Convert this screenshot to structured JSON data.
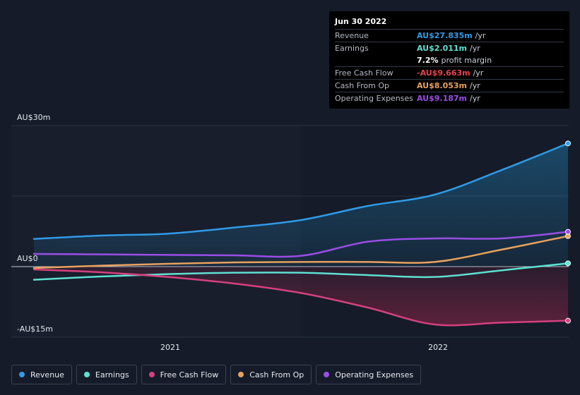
{
  "chart_data": {
    "type": "line",
    "title": "",
    "xlabel": "",
    "ylabel": "",
    "ylim": [
      -15,
      30
    ],
    "y_ticks": [
      {
        "value": 30,
        "label": "AU$30m"
      },
      {
        "value": 0,
        "label": "AU$0"
      },
      {
        "value": -15,
        "label": "-AU$15m"
      }
    ],
    "x_ticks": [
      {
        "value": 2021.0,
        "label": "2021"
      },
      {
        "value": 2022.0,
        "label": "2022"
      }
    ],
    "xlim": [
      2020.5,
      2022.5
    ],
    "shade_start": 2021.5,
    "series": [
      {
        "name": "Revenue",
        "color": "#2f9be8",
        "fill": true,
        "x": [
          2020.5,
          2020.75,
          2021.0,
          2021.25,
          2021.5,
          2021.75,
          2022.0,
          2022.25,
          2022.5
        ],
        "values": [
          5.9,
          6.6,
          7.0,
          8.3,
          9.9,
          12.9,
          15.3,
          20.5,
          26.2
        ]
      },
      {
        "name": "Earnings",
        "color": "#5de0d2",
        "fill": false,
        "x": [
          2020.5,
          2020.75,
          2021.0,
          2021.25,
          2021.5,
          2021.75,
          2022.0,
          2022.25,
          2022.5
        ],
        "values": [
          -2.8,
          -2.1,
          -1.6,
          -1.3,
          -1.3,
          -1.8,
          -2.2,
          -0.8,
          0.7
        ]
      },
      {
        "name": "Free Cash Flow",
        "color": "#d6407f",
        "fill": true,
        "x": [
          2020.5,
          2020.75,
          2021.0,
          2021.25,
          2021.5,
          2021.75,
          2022.0,
          2022.25,
          2022.5
        ],
        "values": [
          -0.6,
          -1.2,
          -2.2,
          -3.6,
          -5.6,
          -8.7,
          -12.3,
          -11.9,
          -11.5
        ]
      },
      {
        "name": "Cash From Op",
        "color": "#e8a15e",
        "fill": false,
        "x": [
          2020.5,
          2020.75,
          2021.0,
          2021.25,
          2021.5,
          2021.75,
          2022.0,
          2022.25,
          2022.5
        ],
        "values": [
          -0.3,
          0.2,
          0.6,
          0.9,
          1.0,
          1.0,
          1.0,
          3.6,
          6.5
        ]
      },
      {
        "name": "Operating Expenses",
        "color": "#9b4de6",
        "fill": false,
        "x": [
          2020.5,
          2020.75,
          2021.0,
          2021.25,
          2021.5,
          2021.75,
          2022.0,
          2022.25,
          2022.5
        ],
        "values": [
          2.7,
          2.6,
          2.5,
          2.4,
          2.3,
          5.3,
          6.0,
          6.0,
          7.4
        ]
      }
    ]
  },
  "tooltip": {
    "date": "Jun 30 2022",
    "rows": [
      {
        "label": "Revenue",
        "value": "AU$27.835m",
        "unit": "/yr",
        "color": "#2f9be8"
      },
      {
        "label": "Earnings",
        "value": "AU$2.011m",
        "unit": "/yr",
        "color": "#5de0d2"
      },
      {
        "label": "",
        "value": "7.2%",
        "unit": "profit margin",
        "color": "#ffffff"
      },
      {
        "label": "Free Cash Flow",
        "value": "-AU$9.663m",
        "unit": "/yr",
        "color": "#e8434a"
      },
      {
        "label": "Cash From Op",
        "value": "AU$8.053m",
        "unit": "/yr",
        "color": "#e8a15e"
      },
      {
        "label": "Operating Expenses",
        "value": "AU$9.187m",
        "unit": "/yr",
        "color": "#9b4de6"
      }
    ]
  },
  "legend": [
    {
      "label": "Revenue",
      "color": "#2f9be8"
    },
    {
      "label": "Earnings",
      "color": "#5de0d2"
    },
    {
      "label": "Free Cash Flow",
      "color": "#d6407f"
    },
    {
      "label": "Cash From Op",
      "color": "#e8a15e"
    },
    {
      "label": "Operating Expenses",
      "color": "#9b4de6"
    }
  ]
}
